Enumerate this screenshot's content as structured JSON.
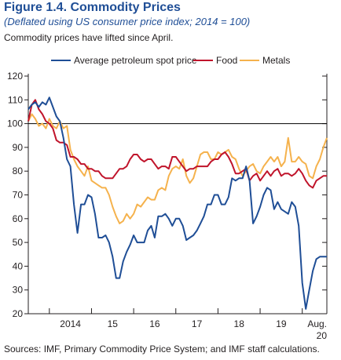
{
  "header": {
    "title": "Figure 1.4.  Commodity Prices",
    "subtitle": "(Deflated using US consumer price index; 2014 = 100)",
    "caption": "Commodity prices have lifted since April."
  },
  "footer": {
    "source": "Sources: IMF, Primary Commodity Price System; and IMF staff calculations."
  },
  "colors": {
    "petroleum": "#1f4e96",
    "food": "#c0142b",
    "metals": "#f5b24d",
    "reference": "#000000"
  },
  "chart_data": {
    "type": "line",
    "title": "",
    "xlabel": "",
    "ylabel": "",
    "ylim": [
      20,
      120
    ],
    "yticks": [
      20,
      30,
      40,
      50,
      60,
      70,
      80,
      90,
      100,
      110,
      120
    ],
    "xlim": [
      "2013-07",
      "2020-08"
    ],
    "xticks": [
      {
        "label": "2014",
        "at": "2014-07"
      },
      {
        "label": "15",
        "at": "2015-07"
      },
      {
        "label": "16",
        "at": "2016-07"
      },
      {
        "label": "17",
        "at": "2017-07"
      },
      {
        "label": "18",
        "at": "2018-07"
      },
      {
        "label": "19",
        "at": "2019-07"
      },
      {
        "label": "Aug.",
        "at": "2020-08"
      }
    ],
    "xtick_sublabel": "20",
    "reference_line": 100,
    "legend_position": "top",
    "grid": false,
    "series": [
      {
        "name": "Average petroleum spot price",
        "color_key": "petroleum",
        "x": [
          "2013-07",
          "2013-08",
          "2013-09",
          "2013-10",
          "2013-11",
          "2013-12",
          "2014-01",
          "2014-02",
          "2014-03",
          "2014-04",
          "2014-05",
          "2014-06",
          "2014-07",
          "2014-08",
          "2014-09",
          "2014-10",
          "2014-11",
          "2014-12",
          "2015-01",
          "2015-02",
          "2015-03",
          "2015-04",
          "2015-05",
          "2015-06",
          "2015-07",
          "2015-08",
          "2015-09",
          "2015-10",
          "2015-11",
          "2015-12",
          "2016-01",
          "2016-02",
          "2016-03",
          "2016-04",
          "2016-05",
          "2016-06",
          "2016-07",
          "2016-08",
          "2016-09",
          "2016-10",
          "2016-11",
          "2016-12",
          "2017-01",
          "2017-02",
          "2017-03",
          "2017-04",
          "2017-05",
          "2017-06",
          "2017-07",
          "2017-08",
          "2017-09",
          "2017-10",
          "2017-11",
          "2017-12",
          "2018-01",
          "2018-02",
          "2018-03",
          "2018-04",
          "2018-05",
          "2018-06",
          "2018-07",
          "2018-08",
          "2018-09",
          "2018-10",
          "2018-11",
          "2018-12",
          "2019-01",
          "2019-02",
          "2019-03",
          "2019-04",
          "2019-05",
          "2019-06",
          "2019-07",
          "2019-08",
          "2019-09",
          "2019-10",
          "2019-11",
          "2019-12",
          "2020-01",
          "2020-02",
          "2020-03",
          "2020-04",
          "2020-05",
          "2020-06",
          "2020-07",
          "2020-08"
        ],
        "values": [
          106,
          108,
          109,
          107,
          109,
          108,
          111,
          107,
          103,
          101,
          94,
          85,
          82,
          66,
          54,
          66,
          66,
          70,
          69,
          62,
          52,
          52,
          53,
          50,
          44,
          35,
          35,
          42,
          46,
          49,
          53,
          50,
          50,
          50,
          55,
          57,
          52,
          61,
          61,
          62,
          60,
          57,
          60,
          60,
          57,
          51,
          52,
          53,
          55,
          58,
          61,
          66,
          66,
          70,
          70,
          66,
          66,
          69,
          77,
          76,
          77,
          77,
          82,
          76,
          58,
          61,
          65,
          70,
          73,
          72,
          64,
          67,
          64,
          63,
          62,
          67,
          65,
          57,
          33,
          22,
          30,
          38,
          43,
          44,
          44,
          44
        ]
      },
      {
        "name": "Food",
        "color_key": "food",
        "x": [
          "2013-07",
          "2013-08",
          "2013-09",
          "2013-10",
          "2013-11",
          "2013-12",
          "2014-01",
          "2014-02",
          "2014-03",
          "2014-04",
          "2014-05",
          "2014-06",
          "2014-07",
          "2014-08",
          "2014-09",
          "2014-10",
          "2014-11",
          "2014-12",
          "2015-01",
          "2015-02",
          "2015-03",
          "2015-04",
          "2015-05",
          "2015-06",
          "2015-07",
          "2015-08",
          "2015-09",
          "2015-10",
          "2015-11",
          "2015-12",
          "2016-01",
          "2016-02",
          "2016-03",
          "2016-04",
          "2016-05",
          "2016-06",
          "2016-07",
          "2016-08",
          "2016-09",
          "2016-10",
          "2016-11",
          "2016-12",
          "2017-01",
          "2017-02",
          "2017-03",
          "2017-04",
          "2017-05",
          "2017-06",
          "2017-07",
          "2017-08",
          "2017-09",
          "2017-10",
          "2017-11",
          "2017-12",
          "2018-01",
          "2018-02",
          "2018-03",
          "2018-04",
          "2018-05",
          "2018-06",
          "2018-07",
          "2018-08",
          "2018-09",
          "2018-10",
          "2018-11",
          "2018-12",
          "2019-01",
          "2019-02",
          "2019-03",
          "2019-04",
          "2019-05",
          "2019-06",
          "2019-07",
          "2019-08",
          "2019-09",
          "2019-10",
          "2019-11",
          "2019-12",
          "2020-01",
          "2020-02",
          "2020-03",
          "2020-04",
          "2020-05",
          "2020-06",
          "2020-07",
          "2020-08"
        ],
        "values": [
          101,
          108,
          110,
          106,
          104,
          101,
          100,
          98,
          93,
          92,
          92,
          91,
          86,
          86,
          85,
          83,
          83,
          81,
          81,
          80,
          80,
          78,
          77,
          77,
          77,
          79,
          81,
          81,
          82,
          85,
          87,
          87,
          85,
          84,
          85,
          85,
          83,
          81,
          82,
          82,
          81,
          86,
          86,
          84,
          82,
          80,
          81,
          81,
          82,
          82,
          82,
          82,
          84,
          85,
          85,
          87,
          88,
          86,
          83,
          79,
          79,
          80,
          81,
          76,
          78,
          79,
          76,
          78,
          80,
          78,
          80,
          81,
          78,
          79,
          79,
          78,
          79,
          81,
          79,
          76,
          74,
          73,
          76,
          77,
          78,
          78
        ]
      },
      {
        "name": "Metals",
        "color_key": "metals",
        "x": [
          "2013-07",
          "2013-08",
          "2013-09",
          "2013-10",
          "2013-11",
          "2013-12",
          "2014-01",
          "2014-02",
          "2014-03",
          "2014-04",
          "2014-05",
          "2014-06",
          "2014-07",
          "2014-08",
          "2014-09",
          "2014-10",
          "2014-11",
          "2014-12",
          "2015-01",
          "2015-02",
          "2015-03",
          "2015-04",
          "2015-05",
          "2015-06",
          "2015-07",
          "2015-08",
          "2015-09",
          "2015-10",
          "2015-11",
          "2015-12",
          "2016-01",
          "2016-02",
          "2016-03",
          "2016-04",
          "2016-05",
          "2016-06",
          "2016-07",
          "2016-08",
          "2016-09",
          "2016-10",
          "2016-11",
          "2016-12",
          "2017-01",
          "2017-02",
          "2017-03",
          "2017-04",
          "2017-05",
          "2017-06",
          "2017-07",
          "2017-08",
          "2017-09",
          "2017-10",
          "2017-11",
          "2017-12",
          "2018-01",
          "2018-02",
          "2018-03",
          "2018-04",
          "2018-05",
          "2018-06",
          "2018-07",
          "2018-08",
          "2018-09",
          "2018-10",
          "2018-11",
          "2018-12",
          "2019-01",
          "2019-02",
          "2019-03",
          "2019-04",
          "2019-05",
          "2019-06",
          "2019-07",
          "2019-08",
          "2019-09",
          "2019-10",
          "2019-11",
          "2019-12",
          "2020-01",
          "2020-02",
          "2020-03",
          "2020-04",
          "2020-05",
          "2020-06",
          "2020-07",
          "2020-08"
        ],
        "values": [
          101,
          104,
          102,
          99,
          100,
          98,
          102,
          99,
          98,
          101,
          98,
          99,
          89,
          85,
          82,
          80,
          78,
          82,
          76,
          75,
          74,
          73,
          73,
          70,
          65,
          61,
          58,
          59,
          62,
          60,
          62,
          66,
          65,
          67,
          69,
          68,
          68,
          72,
          73,
          72,
          78,
          81,
          82,
          81,
          85,
          78,
          75,
          77,
          82,
          87,
          88,
          88,
          85,
          85,
          88,
          87,
          88,
          89,
          86,
          85,
          81,
          78,
          80,
          82,
          83,
          80,
          79,
          82,
          84,
          86,
          84,
          86,
          82,
          84,
          94,
          84,
          84,
          86,
          84,
          83,
          78,
          77,
          82,
          85,
          90,
          94
        ]
      }
    ]
  }
}
